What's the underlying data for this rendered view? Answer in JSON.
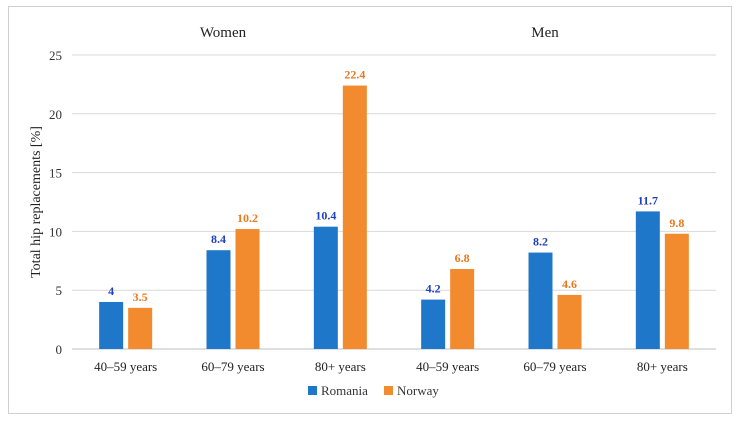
{
  "chart_data": {
    "type": "bar",
    "group_labels": [
      "Women",
      "Men"
    ],
    "categories": [
      "40–59 years",
      "60–79 years",
      "80+ years",
      "40–59 years",
      "60–79 years",
      "80+ years"
    ],
    "series": [
      {
        "name": "Romania",
        "color": "#1f77c9",
        "label_color": "#1f3fbf",
        "values": [
          4,
          8.4,
          10.4,
          4.2,
          8.2,
          11.7
        ]
      },
      {
        "name": "Norway",
        "color": "#f28a2e",
        "label_color": "#e8781e",
        "values": [
          3.5,
          10.2,
          22.4,
          6.8,
          4.6,
          9.8
        ]
      }
    ],
    "ylabel": "Total hip replacements [%]",
    "xlabel": "",
    "ylim": [
      0,
      25
    ],
    "yticks": [
      0,
      5,
      10,
      15,
      20,
      25
    ],
    "grid": true,
    "legend": "bottom-center"
  }
}
